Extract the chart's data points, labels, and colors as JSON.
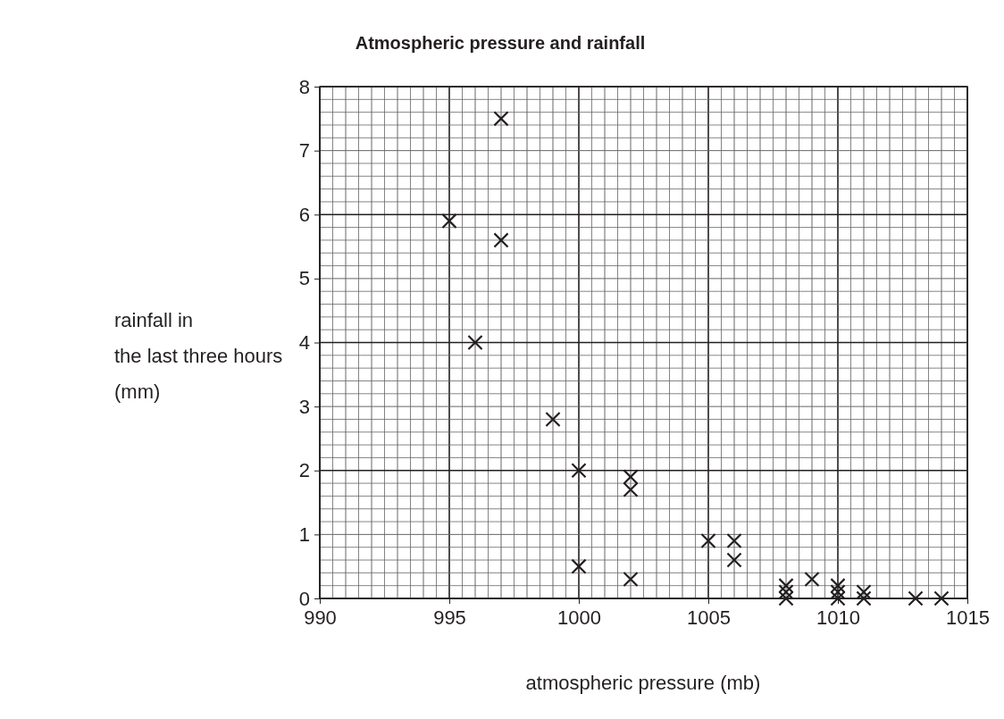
{
  "chart_data": {
    "type": "scatter",
    "title": "Atmospheric pressure and rainfall",
    "xlabel": "atmospheric pressure (mb)",
    "ylabel": "rainfall in\nthe last three hours\n(mm)",
    "x": [
      995,
      997,
      997,
      996,
      999,
      1000,
      1000,
      1002,
      1002,
      1002,
      1005,
      1006,
      1006,
      1008,
      1008,
      1008,
      1009,
      1010,
      1010,
      1010,
      1011,
      1011,
      1013,
      1014
    ],
    "series": [
      {
        "color": "#231f20",
        "values": [
          5.9,
          7.5,
          5.6,
          4.0,
          2.8,
          2.0,
          0.5,
          1.9,
          1.7,
          0.3,
          0.9,
          0.9,
          0.6,
          0.2,
          0.1,
          0,
          0.3,
          0.2,
          0.1,
          0,
          0.1,
          0,
          0,
          0
        ]
      }
    ],
    "xlim": [
      990,
      1015
    ],
    "xticks": [
      990,
      995,
      1000,
      1005,
      1010,
      1015
    ],
    "ylim": [
      0,
      8
    ],
    "yticks": [
      0,
      1,
      2,
      3,
      4,
      5,
      6,
      7,
      8
    ],
    "grid": true,
    "marker": "cross"
  }
}
